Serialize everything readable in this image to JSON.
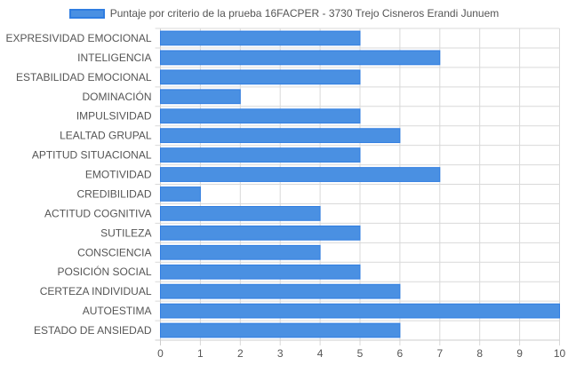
{
  "chart_data": {
    "type": "bar",
    "orientation": "horizontal",
    "categories": [
      "EXPRESIVIDAD EMOCIONAL",
      "INTELIGENCIA",
      "ESTABILIDAD EMOCIONAL",
      "DOMINACIÓN",
      "IMPULSIVIDAD",
      "LEALTAD GRUPAL",
      "APTITUD SITUACIONAL",
      "EMOTIVIDAD",
      "CREDIBILIDAD",
      "ACTITUD COGNITIVA",
      "SUTILEZA",
      "CONSCIENCIA",
      "POSICIÓN SOCIAL",
      "CERTEZA INDIVIDUAL",
      "AUTOESTIMA",
      "ESTADO DE ANSIEDAD"
    ],
    "series": [
      {
        "name": "Puntaje por criterio de la prueba 16FACPER - 3730 Trejo Cisneros Erandi Junuem",
        "values": [
          5,
          7,
          5,
          2,
          5,
          6,
          5,
          7,
          1,
          4,
          5,
          4,
          5,
          6,
          10,
          6
        ]
      }
    ],
    "xlim": [
      0,
      10
    ],
    "xticks": [
      "0",
      "1",
      "2",
      "3",
      "4",
      "5",
      "6",
      "7",
      "8",
      "9",
      "10"
    ],
    "grid": true,
    "legend_position": "top",
    "colors": {
      "bar_fill": "#4a90e2",
      "bar_border": "#2f7de1",
      "grid": "#d9d9d9",
      "axis": "#cccccc",
      "text": "#555555"
    }
  }
}
